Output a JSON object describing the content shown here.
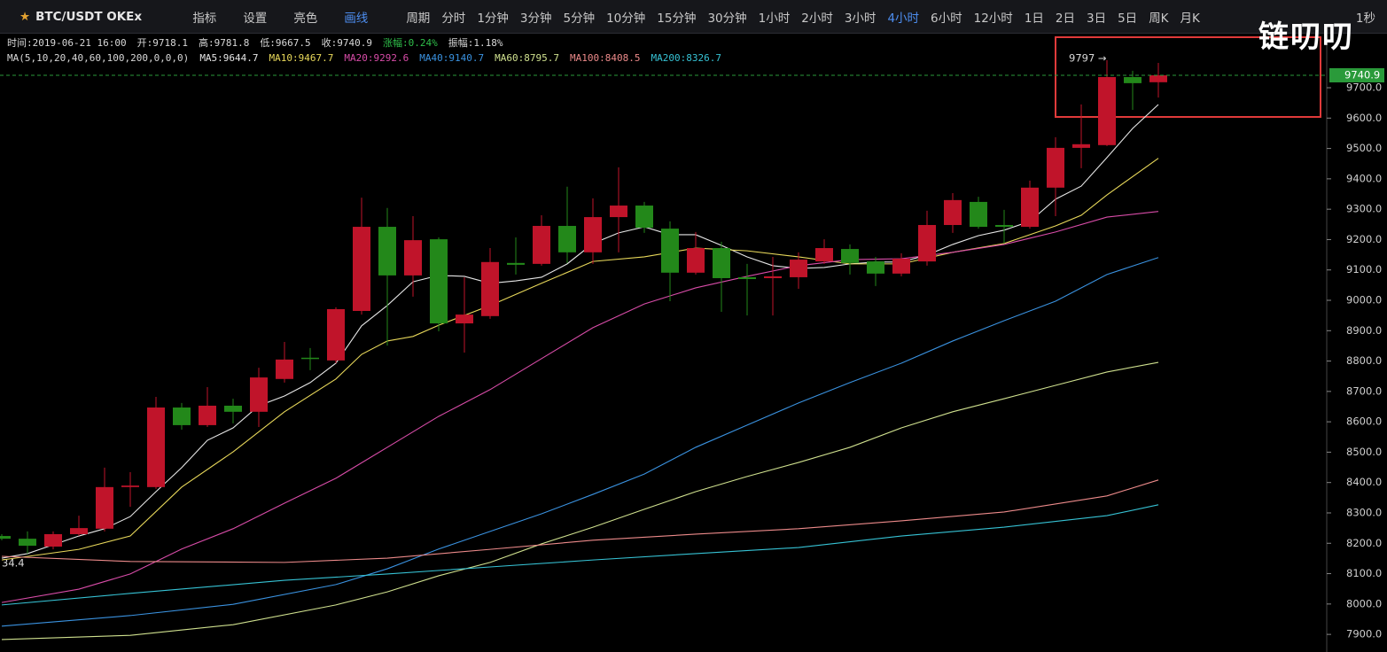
{
  "toolbar": {
    "symbol": "BTC/USDT OKEx",
    "tools": [
      "指标",
      "设置",
      "亮色",
      "画线"
    ],
    "period_label": "周期",
    "periods": [
      "分时",
      "1分钟",
      "3分钟",
      "5分钟",
      "10分钟",
      "15分钟",
      "30分钟",
      "1小时",
      "2小时",
      "3小时",
      "4小时",
      "6小时",
      "12小时",
      "1日",
      "2日",
      "3日",
      "5日",
      "周K",
      "月K"
    ],
    "active_period": 10,
    "active_color": "#4d8ef0",
    "refresh": "1秒"
  },
  "logo": "链叨叨",
  "info": [
    {
      "text": "时间:2019-06-21 16:00"
    },
    {
      "text": "开:9718.1"
    },
    {
      "text": "高:9781.8"
    },
    {
      "text": "低:9667.5"
    },
    {
      "text": "收:9740.9"
    },
    {
      "text": "涨幅:0.24%",
      "color": "#2fbf4a"
    },
    {
      "text": "振幅:1.18%"
    }
  ],
  "chart_data": {
    "type": "candlestick",
    "ma_label": "MA(5,10,20,40,60,100,200,0,0,0)",
    "up_color": "#c0142a",
    "down_color": "#23881a",
    "open": [
      8224,
      8215,
      8189,
      8230,
      8248,
      8385,
      8385,
      8647,
      8589,
      8653,
      8633,
      8741,
      8811,
      8802,
      8965,
      9242,
      9082,
      9201,
      8924,
      8948,
      9123,
      9120,
      9245,
      9158,
      9274,
      9312,
      9236,
      9091,
      9172,
      9076,
      9073,
      9076,
      9128,
      9169,
      9128,
      9088,
      9128,
      9248,
      9324,
      9248,
      9242,
      9371,
      9502,
      9511,
      9735,
      9718.1
    ],
    "high": [
      8230,
      8239,
      8239,
      8291,
      8449,
      8434,
      8682,
      8662,
      8714,
      8676,
      8778,
      8863,
      8843,
      8977,
      9338,
      9304,
      9277,
      9207,
      9076,
      9172,
      9207,
      9280,
      9374,
      9336,
      9438,
      9324,
      9260,
      9225,
      9193,
      9120,
      9143,
      9158,
      9201,
      9184,
      9143,
      9155,
      9295,
      9353,
      9341,
      9298,
      9394,
      9537,
      9645,
      9791,
      9756,
      9781.8
    ],
    "low": [
      8210,
      8166,
      8180,
      8224,
      8239,
      8320,
      8379,
      8574,
      8583,
      8595,
      8583,
      8729,
      8770,
      8793,
      8953,
      8851,
      9012,
      8898,
      8828,
      8939,
      9085,
      9114,
      9123,
      9120,
      9158,
      9222,
      8997,
      9085,
      8962,
      8950,
      8950,
      9038,
      9120,
      9085,
      9047,
      9079,
      9114,
      9222,
      9236,
      9187,
      9236,
      9277,
      9435,
      9508,
      9627,
      9667.5
    ],
    "close": [
      8215,
      8192,
      8230,
      8250,
      8385,
      8390,
      8647,
      8589,
      8653,
      8633,
      8746,
      8805,
      8808,
      8971,
      9242,
      9082,
      9198,
      8924,
      8953,
      9126,
      9117,
      9245,
      9158,
      9274,
      9312,
      9239,
      9091,
      9172,
      9073,
      9070,
      9079,
      9134,
      9172,
      9123,
      9088,
      9137,
      9248,
      9330,
      9242,
      9242,
      9371,
      9502,
      9514,
      9735,
      9715,
      9740.9
    ],
    "series": [
      {
        "name": "MA5:9644.7",
        "color": "#e6e6e6",
        "x": [
          0,
          1,
          2,
          3,
          4,
          5,
          6,
          7,
          8,
          9,
          10,
          11,
          12,
          13,
          14,
          15,
          16,
          17,
          18,
          19,
          20,
          21,
          22,
          23,
          24,
          25,
          26,
          27,
          28,
          29,
          30,
          31,
          32,
          33,
          34,
          35,
          36,
          37,
          38,
          39,
          40,
          41,
          42,
          43,
          44,
          45
        ],
        "values": [
          8151,
          8166,
          8195,
          8224,
          8248,
          8288,
          8370,
          8449,
          8539,
          8580,
          8653,
          8685,
          8729,
          8793,
          8916,
          8983,
          9061,
          9082,
          9079,
          9056,
          9064,
          9076,
          9120,
          9187,
          9222,
          9242,
          9216,
          9216,
          9181,
          9143,
          9114,
          9105,
          9108,
          9120,
          9126,
          9126,
          9149,
          9184,
          9213,
          9231,
          9260,
          9333,
          9376,
          9470,
          9566,
          9644.7
        ]
      },
      {
        "name": "MA10:9467.7",
        "color": "#e8d85a",
        "x": [
          0,
          3,
          5,
          7,
          9,
          11,
          13,
          14,
          15,
          16,
          17,
          19,
          21,
          23,
          25,
          27,
          29,
          31,
          33,
          35,
          37,
          39,
          41,
          42,
          43,
          45
        ],
        "values": [
          8145,
          8180,
          8224,
          8385,
          8501,
          8633,
          8741,
          8822,
          8866,
          8881,
          8918,
          8983,
          9056,
          9128,
          9143,
          9172,
          9163,
          9143,
          9120,
          9120,
          9158,
          9187,
          9245,
          9280,
          9347,
          9467.7
        ]
      },
      {
        "name": "MA20:9292.6",
        "color": "#d84ca8",
        "x": [
          0,
          3,
          5,
          7,
          9,
          11,
          13,
          15,
          17,
          19,
          21,
          23,
          25,
          27,
          29,
          31,
          33,
          35,
          37,
          39,
          41,
          43,
          45
        ],
        "values": [
          8005,
          8049,
          8099,
          8181,
          8248,
          8332,
          8414,
          8516,
          8618,
          8706,
          8808,
          8910,
          8988,
          9041,
          9079,
          9114,
          9134,
          9137,
          9158,
          9184,
          9225,
          9274,
          9292.6
        ]
      },
      {
        "name": "MA40:9140.7",
        "color": "#3a92e0",
        "x": [
          0,
          5,
          9,
          13,
          15,
          17,
          19,
          21,
          23,
          25,
          27,
          29,
          31,
          33,
          35,
          37,
          39,
          41,
          43,
          45
        ],
        "values": [
          7927,
          7962,
          7999,
          8064,
          8116,
          8181,
          8239,
          8297,
          8361,
          8428,
          8516,
          8589,
          8662,
          8729,
          8793,
          8866,
          8933,
          8997,
          9085,
          9140.7
        ]
      },
      {
        "name": "MA60:8795.7",
        "color": "#cfe08e",
        "x": [
          0,
          5,
          9,
          13,
          15,
          17,
          19,
          21,
          23,
          25,
          27,
          29,
          31,
          33,
          35,
          37,
          39,
          41,
          43,
          45
        ],
        "values": [
          7883,
          7897,
          7932,
          7997,
          8040,
          8093,
          8137,
          8198,
          8253,
          8312,
          8370,
          8420,
          8466,
          8516,
          8580,
          8633,
          8676,
          8720,
          8764,
          8795.7
        ]
      },
      {
        "name": "MA100:8408.5",
        "color": "#ec8a8a",
        "x": [
          0,
          5,
          11,
          15,
          19,
          23,
          27,
          31,
          35,
          39,
          43,
          45
        ],
        "values": [
          8157,
          8140,
          8137,
          8151,
          8180,
          8210,
          8230,
          8248,
          8274,
          8303,
          8356,
          8408.5
        ]
      },
      {
        "name": "MA200:8326.7",
        "color": "#36c2d4",
        "x": [
          0,
          5,
          11,
          15,
          19,
          23,
          27,
          31,
          35,
          39,
          43,
          45
        ],
        "values": [
          7997,
          8035,
          8078,
          8099,
          8122,
          8145,
          8166,
          8186,
          8224,
          8253,
          8291,
          8326.7
        ]
      }
    ],
    "ylim": [
      7842,
      9878
    ],
    "yticks": [
      {
        "value": 7900,
        "label": "7900.0"
      },
      {
        "value": 8000,
        "label": "8000.0"
      },
      {
        "value": 8100,
        "label": "8100.0"
      },
      {
        "value": 8200,
        "label": "8200.0"
      },
      {
        "value": 8300,
        "label": "8300.0"
      },
      {
        "value": 8400,
        "label": "8400.0"
      },
      {
        "value": 8500,
        "label": "8500.0"
      },
      {
        "value": 8600,
        "label": "8600.0"
      },
      {
        "value": 8700,
        "label": "8700.0"
      },
      {
        "value": 8800,
        "label": "8800.0"
      },
      {
        "value": 8900,
        "label": "8900.0"
      },
      {
        "value": 9000,
        "label": "9000.0"
      },
      {
        "value": 9100,
        "label": "9100.0"
      },
      {
        "value": 9200,
        "label": "9200.0"
      },
      {
        "value": 9300,
        "label": "9300.0"
      },
      {
        "value": 9400,
        "label": "9400.0"
      },
      {
        "value": 9500,
        "label": "9500.0"
      },
      {
        "value": 9600,
        "label": "9600.0"
      },
      {
        "value": 9700,
        "label": "9700.0"
      }
    ],
    "last_price": 9740.9,
    "last_price_color": "#2a9a3a",
    "annotations": [
      "9797 →",
      "34.4"
    ]
  }
}
